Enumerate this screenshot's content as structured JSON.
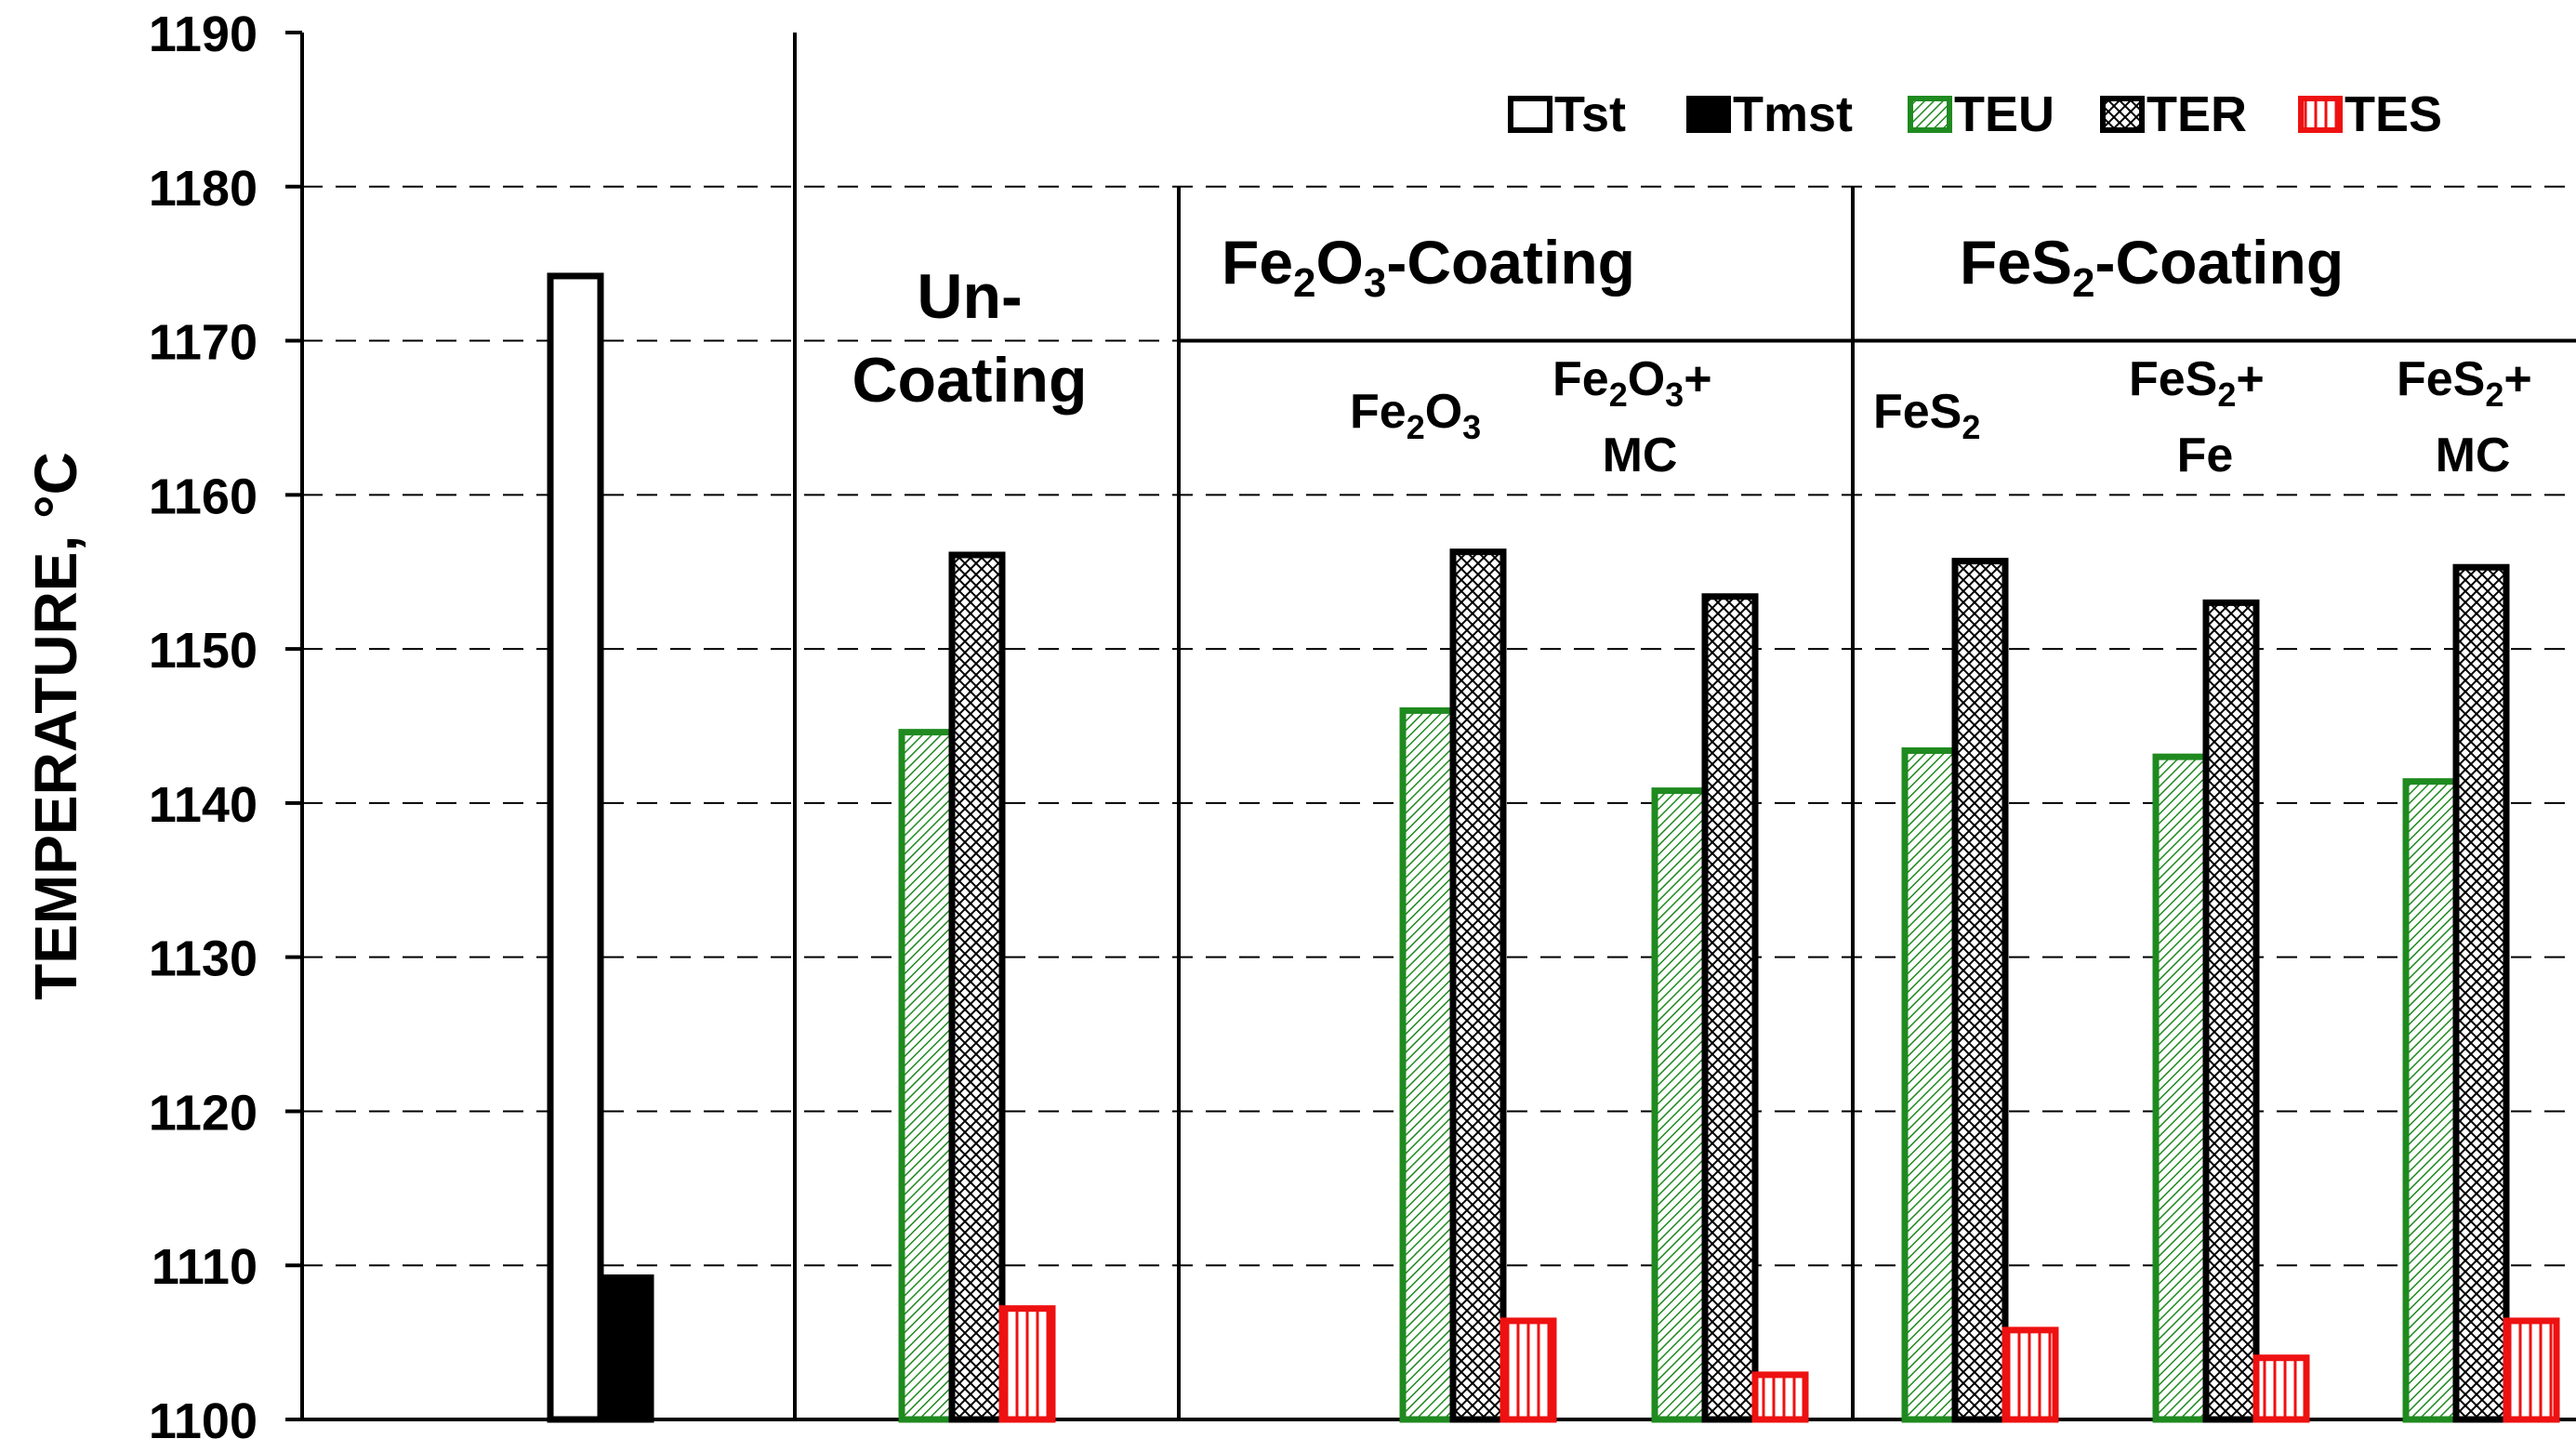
{
  "chart_data": {
    "type": "bar",
    "ylabel": "TEMPERATURE, °C",
    "ylim": [
      1100,
      1190
    ],
    "yticks": [
      1100,
      1110,
      1120,
      1130,
      1140,
      1150,
      1160,
      1170,
      1180,
      1190
    ],
    "grid": "dashed horizontal",
    "legend": [
      {
        "key": "Tst",
        "label": "Tst"
      },
      {
        "key": "Tmst",
        "label": "Tmst"
      },
      {
        "key": "TEU",
        "label": "TEU"
      },
      {
        "key": "TER",
        "label": "TER"
      },
      {
        "key": "TES",
        "label": "TES"
      }
    ],
    "sections": {
      "uncoating": {
        "line1": "Un-",
        "line2": "Coating"
      },
      "fe2o3": {
        "base": "Fe",
        "sub1": "2",
        "mid": "O",
        "sub2": "3",
        "suffix": "-Coating"
      },
      "fes2": {
        "base": "FeS",
        "sub1": "2",
        "suffix": "-Coating"
      }
    },
    "sub_labels": {
      "fe2o3": {
        "base": "Fe",
        "sub1": "2",
        "mid": "O",
        "sub2": "3"
      },
      "fe2o3_mc": {
        "base": "Fe",
        "sub1": "2",
        "mid": "O",
        "sub2": "3",
        "suffix": "+",
        "line2": "MC"
      },
      "fes2": {
        "base": "FeS",
        "sub1": "2"
      },
      "fes2_fe": {
        "base": "FeS",
        "sub1": "2",
        "suffix": "+",
        "line2": "Fe"
      },
      "fes2_mc": {
        "base": "FeS",
        "sub1": "2",
        "suffix": "+",
        "line2": "MC"
      }
    },
    "series": {
      "reference": {
        "Tst": 1174.2,
        "Tmst": 1109.2
      },
      "uncoating": {
        "TEU": 1144.6,
        "TER": 1156.1,
        "TES": 1107.2
      },
      "fe2o3": {
        "TEU": 1146.0,
        "TER": 1156.3,
        "TES": 1106.4
      },
      "fe2o3_mc": {
        "TEU": 1140.8,
        "TER": 1153.4,
        "TES": 1102.9
      },
      "fes2": {
        "TEU": 1143.4,
        "TER": 1155.7,
        "TES": 1105.8
      },
      "fes2_fe": {
        "TEU": 1143.0,
        "TER": 1153.0,
        "TES": 1104.0
      },
      "fes2_mc": {
        "TEU": 1141.4,
        "TER": 1155.3,
        "TES": 1106.4
      }
    },
    "colors": {
      "green": "#1f8a1f",
      "red": "#ee1111",
      "black": "#000000"
    }
  }
}
